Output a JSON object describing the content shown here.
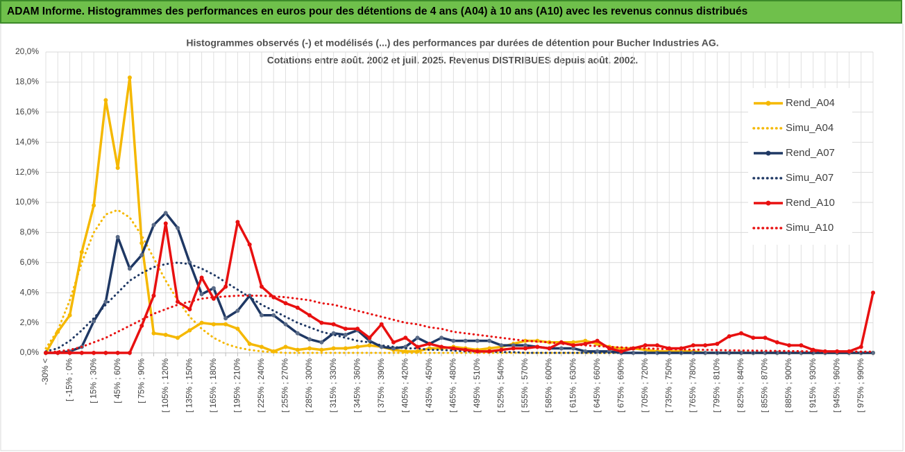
{
  "header": {
    "title": "ADAM Informe. Histogrammes des performances en euros pour des détentions de 4 ans (A04) à 10 ans (A10) avec les revenus connus distribués"
  },
  "chart_data": {
    "type": "line",
    "title": "Histogrammes observés (-) et modélisés (...) des performances par durées de détention pour Bucher Industries AG.",
    "subtitle": "Cotations entre août. 2002 et juil. 2025. Revenus DISTRIBUES depuis août. 2002.",
    "categories": [
      "-30% <",
      null,
      "[ -15% ; 0%",
      null,
      "[ 15% ; 30%",
      null,
      "[ 45% ; 60%",
      null,
      "[ 75% ; 90%",
      null,
      "[ 105% ; 120%",
      null,
      "[ 135% ; 150%",
      null,
      "[ 165% ; 180%",
      null,
      "[ 195% ; 210%",
      null,
      "[ 225% ; 240%",
      null,
      "[ 255% ; 270%",
      null,
      "[ 285% ; 300%",
      null,
      "[ 315% ; 330%",
      null,
      "[ 345% ; 360%",
      null,
      "[ 375% ; 390%",
      null,
      "[ 405% ; 420%",
      null,
      "[ 435% ; 450%",
      null,
      "[ 465% ; 480%",
      null,
      "[ 495% ; 510%",
      null,
      "[ 525% ; 540%",
      null,
      "[ 555% ; 570%",
      null,
      "[ 585% ; 600%",
      null,
      "[ 615% ; 630%",
      null,
      "[ 645% ; 660%",
      null,
      "[ 675% ; 690%",
      null,
      "[ 705% ; 720%",
      null,
      "[ 735% ; 750%",
      null,
      "[ 765% ; 780%",
      null,
      "[ 795% ; 810%",
      null,
      "[ 825% ; 840%",
      null,
      "[ 855% ; 870%",
      null,
      "[ 885% ; 900%",
      null,
      "[ 915% ; 930%",
      null,
      "[ 945% ; 960%",
      null,
      "[ 975% ; 990%",
      null
    ],
    "series": [
      {
        "name": "Rend_A04",
        "color": "#f5b800",
        "line_style": "solid",
        "markers": true,
        "values": [
          0,
          1.4,
          2.5,
          6.7,
          9.8,
          16.8,
          12.3,
          18.3,
          7.3,
          1.3,
          1.2,
          1.0,
          1.5,
          2.0,
          1.9,
          1.9,
          1.6,
          0.6,
          0.4,
          0.1,
          0.4,
          0.2,
          0.3,
          0.2,
          0.3,
          0.3,
          0.4,
          0.5,
          0.4,
          0.2,
          0.1,
          0.1,
          0.3,
          0.3,
          0.4,
          0.3,
          0.2,
          0.3,
          0.4,
          0.6,
          0.8,
          0.8,
          0.7,
          0.7,
          0.7,
          0.8,
          0.6,
          0.4,
          0.3,
          0.3,
          0.2,
          0.1,
          0.1,
          0.1,
          0.1,
          0,
          0,
          0,
          0,
          0,
          0,
          0,
          0,
          0,
          0,
          0,
          0,
          0,
          0,
          0
        ]
      },
      {
        "name": "Simu_A04",
        "color": "#f5b800",
        "line_style": "dotted",
        "markers": false,
        "values": [
          0.3,
          1.5,
          3.5,
          6.0,
          8.0,
          9.2,
          9.5,
          9.0,
          7.8,
          6.3,
          4.8,
          3.5,
          2.4,
          1.6,
          1.0,
          0.6,
          0.35,
          0.2,
          0.1,
          0.05,
          0,
          0,
          0,
          0,
          0,
          0,
          0,
          0,
          0,
          0,
          0,
          0,
          0,
          0,
          0,
          0,
          0,
          0,
          0,
          0,
          0,
          0,
          0,
          0,
          0,
          0,
          0,
          0,
          0,
          0,
          0,
          0,
          0,
          0,
          0,
          0,
          0,
          0,
          0,
          0,
          0,
          0,
          0,
          0,
          0,
          0,
          0,
          0,
          0,
          0
        ]
      },
      {
        "name": "Rend_A07",
        "color": "#1f3864",
        "line_style": "solid",
        "markers": true,
        "values": [
          0,
          0,
          0.1,
          0.4,
          2.1,
          3.4,
          7.7,
          5.6,
          6.5,
          8.5,
          9.3,
          8.3,
          6.0,
          3.9,
          4.3,
          2.3,
          2.8,
          3.8,
          2.5,
          2.5,
          1.9,
          1.3,
          0.9,
          0.7,
          1.3,
          1.2,
          1.5,
          0.8,
          0.4,
          0.3,
          0.4,
          1.0,
          0.6,
          1.0,
          0.8,
          0.8,
          0.8,
          0.8,
          0.5,
          0.5,
          0.5,
          0.4,
          0.3,
          0.3,
          0.3,
          0.1,
          0.1,
          0.1,
          0,
          0,
          0,
          0,
          0,
          0,
          0,
          0,
          0,
          0,
          0,
          0,
          0,
          0,
          0,
          0,
          0,
          0,
          0,
          0,
          0,
          0
        ]
      },
      {
        "name": "Simu_A07",
        "color": "#1f3864",
        "line_style": "dotted",
        "markers": false,
        "values": [
          0.1,
          0.3,
          0.8,
          1.5,
          2.3,
          3.2,
          4.0,
          4.8,
          5.3,
          5.7,
          5.9,
          6.0,
          5.9,
          5.6,
          5.2,
          4.7,
          4.2,
          3.7,
          3.2,
          2.8,
          2.4,
          2.0,
          1.7,
          1.4,
          1.2,
          1.0,
          0.8,
          0.7,
          0.5,
          0.4,
          0.3,
          0.3,
          0.2,
          0.2,
          0.15,
          0.1,
          0.1,
          0.1,
          0.05,
          0.05,
          0,
          0,
          0,
          0,
          0,
          0,
          0,
          0,
          0,
          0,
          0,
          0,
          0,
          0,
          0,
          0,
          0,
          0,
          0,
          0,
          0,
          0,
          0,
          0,
          0,
          0,
          0,
          0,
          0,
          0
        ]
      },
      {
        "name": "Rend_A10",
        "color": "#e81010",
        "line_style": "solid",
        "markers": true,
        "values": [
          0,
          0,
          0,
          0,
          0,
          0,
          0,
          0,
          1.8,
          3.8,
          8.6,
          3.4,
          2.9,
          5.0,
          3.6,
          4.4,
          8.7,
          7.2,
          4.4,
          3.7,
          3.3,
          3.0,
          2.5,
          2.0,
          1.9,
          1.6,
          1.6,
          1.0,
          1.9,
          0.7,
          1.0,
          0.4,
          0.6,
          0.4,
          0.3,
          0.2,
          0.1,
          0.1,
          0.2,
          0.3,
          0.3,
          0.4,
          0.3,
          0.7,
          0.5,
          0.6,
          0.8,
          0.3,
          0.1,
          0.3,
          0.5,
          0.5,
          0.3,
          0.3,
          0.5,
          0.5,
          0.6,
          1.1,
          1.3,
          1.0,
          1.0,
          0.7,
          0.5,
          0.5,
          0.2,
          0.1,
          0.1,
          0.1,
          0.4,
          4.0
        ]
      },
      {
        "name": "Simu_A10",
        "color": "#e81010",
        "line_style": "dotted",
        "markers": false,
        "values": [
          0,
          0.1,
          0.2,
          0.4,
          0.7,
          1.0,
          1.4,
          1.8,
          2.2,
          2.6,
          2.9,
          3.2,
          3.4,
          3.6,
          3.7,
          3.75,
          3.8,
          3.8,
          3.8,
          3.75,
          3.7,
          3.6,
          3.5,
          3.3,
          3.2,
          3.0,
          2.8,
          2.6,
          2.4,
          2.2,
          2.0,
          1.9,
          1.7,
          1.6,
          1.4,
          1.3,
          1.2,
          1.1,
          1.0,
          0.9,
          0.8,
          0.75,
          0.7,
          0.6,
          0.55,
          0.5,
          0.45,
          0.4,
          0.36,
          0.33,
          0.3,
          0.27,
          0.25,
          0.23,
          0.21,
          0.2,
          0.18,
          0.17,
          0.16,
          0.15,
          0.14,
          0.13,
          0.12,
          0.11,
          0.1,
          0.1,
          0.09,
          0.09,
          0.08,
          0.08
        ]
      }
    ],
    "ylim": [
      0,
      20
    ],
    "yticks": [
      {
        "value": 0,
        "label": "0,0%"
      },
      {
        "value": 2,
        "label": "2,0%"
      },
      {
        "value": 4,
        "label": "4,0%"
      },
      {
        "value": 6,
        "label": "6,0%"
      },
      {
        "value": 8,
        "label": "8,0%"
      },
      {
        "value": 10,
        "label": "10,0%"
      },
      {
        "value": 12,
        "label": "12,0%"
      },
      {
        "value": 14,
        "label": "14,0%"
      },
      {
        "value": 16,
        "label": "16,0%"
      },
      {
        "value": 18,
        "label": "18,0%"
      },
      {
        "value": 20,
        "label": "20,0%"
      }
    ],
    "grid": true,
    "legend": "right"
  }
}
